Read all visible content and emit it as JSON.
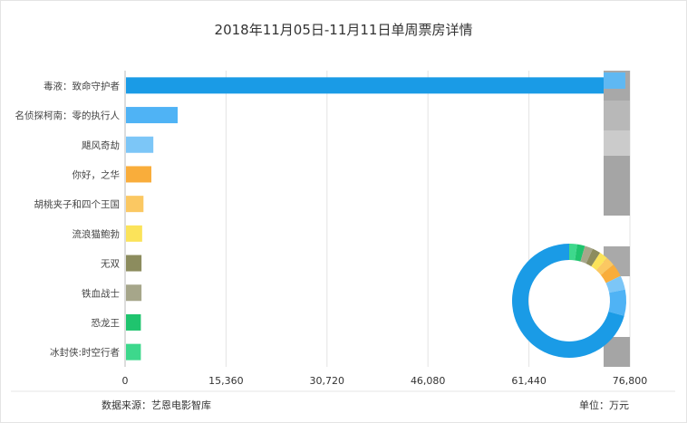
{
  "chart_data": {
    "type": "bar",
    "orientation": "horizontal",
    "title": "2018年11月05日-11月11日单周票房详情",
    "categories": [
      "毒液：致命守护者",
      "名侦探柯南：零的执行人",
      "飓风奇劫",
      "你好，之华",
      "胡桃夹子和四个王国",
      "流浪猫鲍勃",
      "无双",
      "铁血战士",
      "恐龙王",
      "冰封侠:时空行者"
    ],
    "values": [
      76100,
      8000,
      4300,
      4000,
      2800,
      2600,
      2500,
      2500,
      2400,
      2400
    ],
    "colors": [
      "#1a9be6",
      "#4fb3f5",
      "#7cc6f7",
      "#f9ad3b",
      "#fbc862",
      "#fbe35a",
      "#8c8c5e",
      "#a6a68a",
      "#1fc46e",
      "#3dd88c"
    ],
    "xlim": [
      0,
      76800
    ],
    "xticks": [
      "0",
      "15,360",
      "30,720",
      "46,080",
      "61,440",
      "76,800"
    ],
    "xtick_values": [
      0,
      15360,
      30720,
      46080,
      61440,
      76800
    ],
    "grid": true,
    "inset": {
      "type": "donut",
      "note": "share of the same values"
    },
    "source": "数据来源：艺恩电影智库",
    "unit": "单位：万元"
  }
}
